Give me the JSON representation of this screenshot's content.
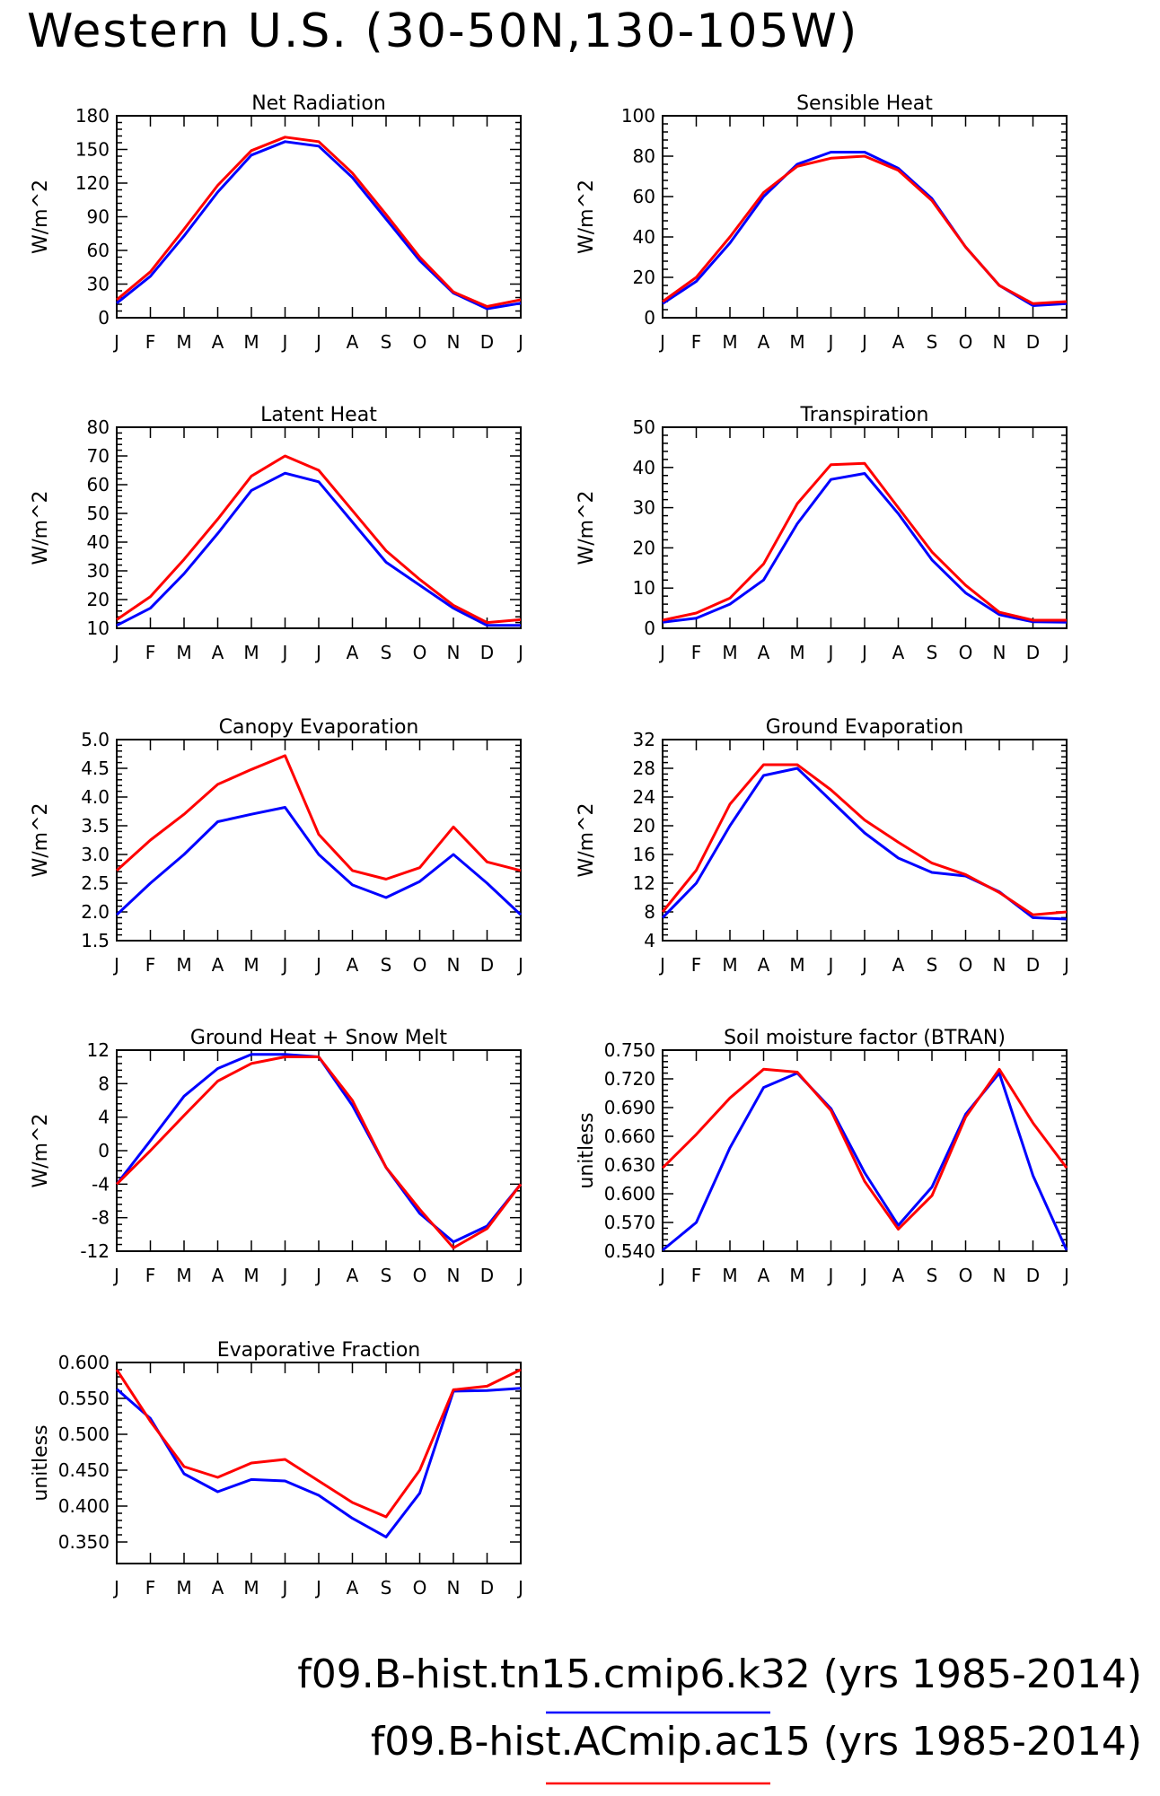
{
  "title": "Western U.S. (30-50N,130-105W)",
  "months": [
    "J",
    "F",
    "M",
    "A",
    "M",
    "J",
    "J",
    "A",
    "S",
    "O",
    "N",
    "D",
    "J"
  ],
  "series_colors": {
    "blue": "#0000ff",
    "red": "#ff0000"
  },
  "legend": [
    {
      "label": "f09.B-hist.tn15.cmip6.k32 (yrs 1985-2014)",
      "color": "#0000ff"
    },
    {
      "label": "f09.B-hist.ACmip.ac15 (yrs 1985-2014)",
      "color": "#ff0000"
    }
  ],
  "chart_data": [
    {
      "type": "line",
      "title": "Net Radiation",
      "ylabel": "W/m^2",
      "ylim": [
        0,
        180
      ],
      "yticks": [
        "0",
        "30",
        "60",
        "90",
        "120",
        "150",
        "180"
      ],
      "series": [
        {
          "color": "#0000ff",
          "values": [
            13,
            37,
            73,
            112,
            145,
            157,
            153,
            125,
            88,
            51,
            22,
            8,
            13
          ]
        },
        {
          "color": "#ff0000",
          "values": [
            16,
            41,
            79,
            118,
            149,
            161,
            157,
            129,
            92,
            54,
            23,
            10,
            16
          ]
        }
      ]
    },
    {
      "type": "line",
      "title": "Sensible Heat",
      "ylabel": "W/m^2",
      "ylim": [
        0,
        100
      ],
      "yticks": [
        "0",
        "20",
        "40",
        "60",
        "80",
        "100"
      ],
      "series": [
        {
          "color": "#0000ff",
          "values": [
            7,
            18,
            37,
            60,
            76,
            82,
            82,
            74,
            59,
            35,
            16,
            6,
            7
          ]
        },
        {
          "color": "#ff0000",
          "values": [
            8,
            20,
            40,
            62,
            75,
            79,
            80,
            73,
            58,
            35,
            16,
            7,
            8
          ]
        }
      ]
    },
    {
      "type": "line",
      "title": "Latent Heat",
      "ylabel": "W/m^2",
      "ylim": [
        10,
        80
      ],
      "yticks": [
        "10",
        "20",
        "30",
        "40",
        "50",
        "60",
        "70",
        "80"
      ],
      "series": [
        {
          "color": "#0000ff",
          "values": [
            11,
            17,
            29,
            43,
            58,
            64,
            61,
            47,
            33,
            25,
            17,
            11,
            11
          ]
        },
        {
          "color": "#ff0000",
          "values": [
            13,
            21,
            34,
            48,
            63,
            70,
            65,
            51,
            37,
            27,
            18,
            12,
            13
          ]
        }
      ]
    },
    {
      "type": "line",
      "title": "Transpiration",
      "ylabel": "W/m^2",
      "ylim": [
        0,
        50
      ],
      "yticks": [
        "0",
        "10",
        "20",
        "30",
        "40",
        "50"
      ],
      "series": [
        {
          "color": "#0000ff",
          "values": [
            1.5,
            2.5,
            6,
            12,
            26,
            37,
            38.5,
            28.5,
            17,
            8.8,
            3.4,
            1.6,
            1.5
          ]
        },
        {
          "color": "#ff0000",
          "values": [
            2,
            3.8,
            7.5,
            16,
            31,
            40.7,
            41,
            30,
            19,
            10.7,
            4,
            2,
            2
          ]
        }
      ]
    },
    {
      "type": "line",
      "title": "Canopy Evaporation",
      "ylabel": "W/m^2",
      "ylim": [
        1.5,
        5.0
      ],
      "yticks": [
        "1.5",
        "2.0",
        "2.5",
        "3.0",
        "3.5",
        "4.0",
        "4.5",
        "5.0"
      ],
      "series": [
        {
          "color": "#0000ff",
          "values": [
            1.95,
            2.5,
            3.0,
            3.57,
            3.7,
            3.82,
            3.0,
            2.47,
            2.25,
            2.53,
            3.0,
            2.5,
            1.95
          ]
        },
        {
          "color": "#ff0000",
          "values": [
            2.72,
            3.25,
            3.7,
            4.22,
            4.48,
            4.72,
            3.35,
            2.72,
            2.57,
            2.77,
            3.48,
            2.87,
            2.72
          ]
        }
      ]
    },
    {
      "type": "line",
      "title": "Ground Evaporation",
      "ylabel": "W/m^2",
      "ylim": [
        4,
        32
      ],
      "yticks": [
        "4",
        "8",
        "12",
        "16",
        "20",
        "24",
        "28",
        "32"
      ],
      "series": [
        {
          "color": "#0000ff",
          "values": [
            7.2,
            12,
            20,
            27,
            28,
            23.5,
            19,
            15.5,
            13.5,
            13,
            10.8,
            7.2,
            7
          ]
        },
        {
          "color": "#ff0000",
          "values": [
            8,
            13.8,
            23,
            28.5,
            28.5,
            25,
            20.8,
            17.7,
            14.8,
            13.2,
            10.7,
            7.6,
            8
          ]
        }
      ]
    },
    {
      "type": "line",
      "title": "Ground Heat + Snow Melt",
      "ylabel": "W/m^2",
      "ylim": [
        -12,
        12
      ],
      "yticks": [
        "-12",
        "-8",
        "-4",
        "0",
        "4",
        "8",
        "12"
      ],
      "series": [
        {
          "color": "#0000ff",
          "values": [
            -4,
            1.2,
            6.5,
            9.8,
            11.5,
            11.5,
            11.2,
            5.4,
            -2,
            -7.5,
            -10.9,
            -9,
            -4
          ]
        },
        {
          "color": "#ff0000",
          "values": [
            -4,
            0,
            4.2,
            8.3,
            10.4,
            11.2,
            11.2,
            6,
            -2,
            -7,
            -11.6,
            -9.3,
            -4
          ]
        }
      ]
    },
    {
      "type": "line",
      "title": "Soil moisture factor (BTRAN)",
      "ylabel": "unitless",
      "ylim": [
        0.54,
        0.75
      ],
      "yticks": [
        "0.540",
        "0.570",
        "0.600",
        "0.630",
        "0.660",
        "0.690",
        "0.720",
        "0.750"
      ],
      "series": [
        {
          "color": "#0000ff",
          "values": [
            0.541,
            0.57,
            0.648,
            0.711,
            0.726,
            0.689,
            0.622,
            0.567,
            0.607,
            0.683,
            0.726,
            0.619,
            0.541
          ]
        },
        {
          "color": "#ff0000",
          "values": [
            0.627,
            0.662,
            0.7,
            0.73,
            0.727,
            0.687,
            0.613,
            0.563,
            0.598,
            0.68,
            0.73,
            0.674,
            0.627
          ]
        }
      ]
    },
    {
      "type": "line",
      "title": "Evaporative Fraction",
      "ylabel": "unitless",
      "ylim": [
        0.32,
        0.6
      ],
      "yticks": [
        "0.350",
        "0.400",
        "0.450",
        "0.500",
        "0.550",
        "0.600"
      ],
      "series": [
        {
          "color": "#0000ff",
          "values": [
            0.563,
            0.522,
            0.445,
            0.42,
            0.437,
            0.435,
            0.415,
            0.383,
            0.357,
            0.418,
            0.56,
            0.561,
            0.564
          ]
        },
        {
          "color": "#ff0000",
          "values": [
            0.59,
            0.518,
            0.455,
            0.44,
            0.46,
            0.465,
            0.435,
            0.405,
            0.385,
            0.45,
            0.562,
            0.567,
            0.59
          ]
        }
      ]
    }
  ]
}
